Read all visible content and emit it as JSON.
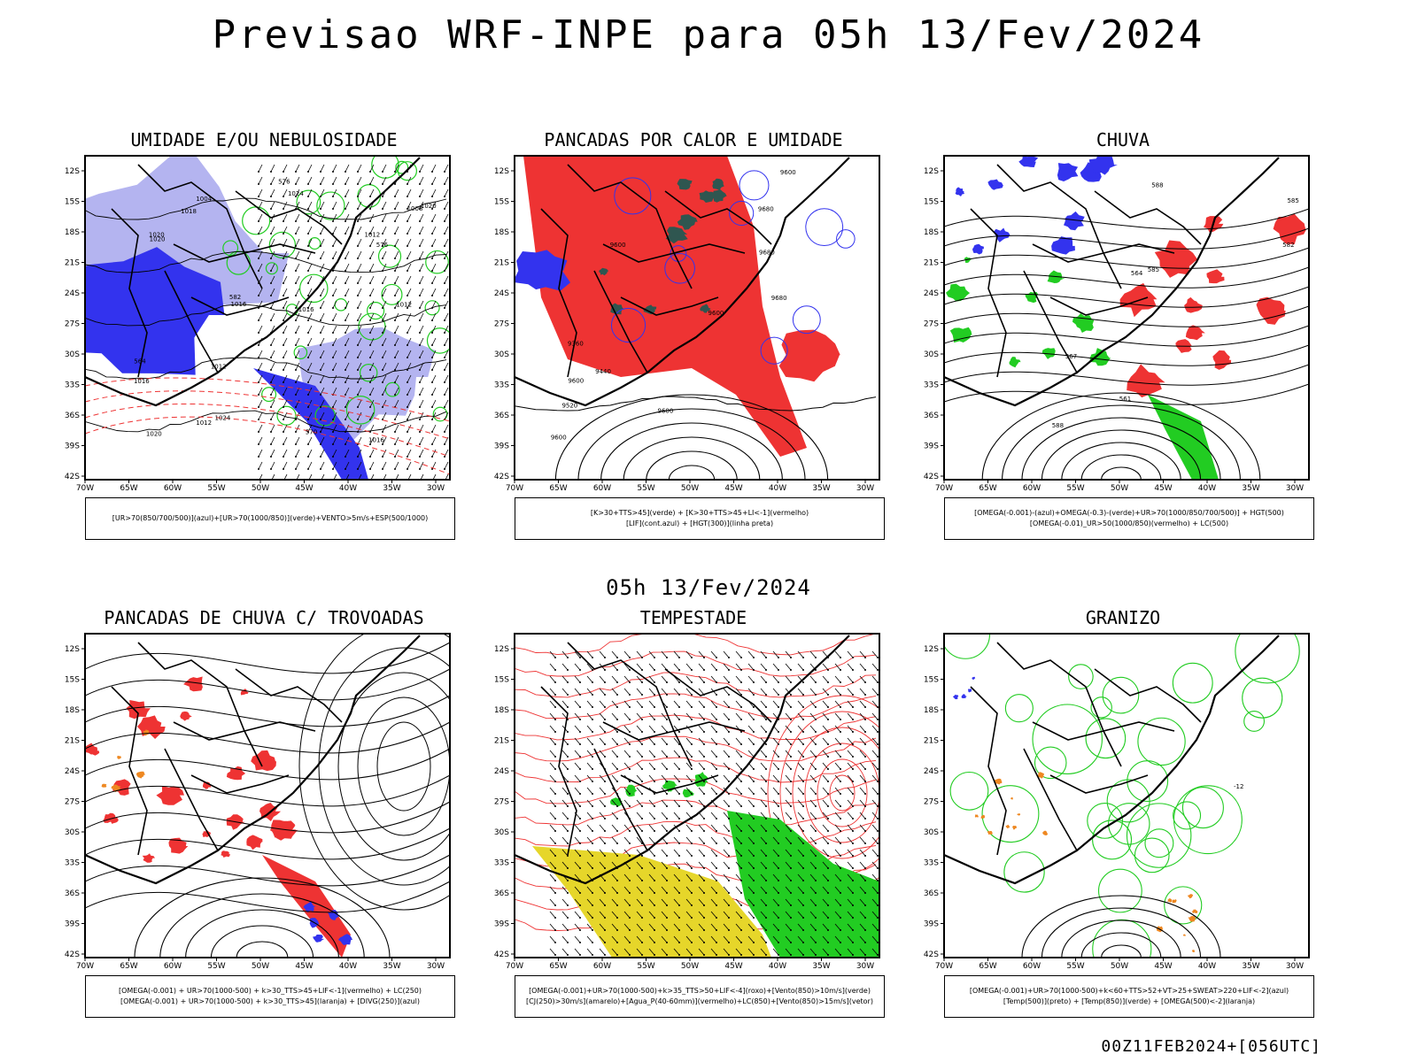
{
  "header": {
    "title": "Previsao WRF-INPE  para 05h 13/Fev/2024",
    "mid_label": "05h 13/Fev/2024",
    "footer": "00Z11FEB2024+[056UTC]"
  },
  "axes": {
    "lat_labels": [
      "12S",
      "15S",
      "18S",
      "21S",
      "24S",
      "27S",
      "30S",
      "33S",
      "36S",
      "39S",
      "42S"
    ],
    "lon_labels": [
      "70W",
      "65W",
      "60W",
      "55W",
      "50W",
      "45W",
      "40W",
      "35W",
      "30W"
    ]
  },
  "colors": {
    "blue": "#3333ee",
    "lightblue": "#b4b4f0",
    "green": "#22cc22",
    "red": "#ee3333",
    "darkteal": "#2f5650",
    "yellow": "#e6d62a",
    "orange": "#ee8822"
  },
  "chart_data": [
    {
      "type": "heatmap",
      "title": "UMIDADE E/OU NEBULOSIDADE",
      "xlim": [
        -70,
        -28
      ],
      "ylim": [
        -42,
        -10
      ],
      "legend": [
        "[UR>70(850/700/500)](azul)+[UR>70(1000/850)](verde)+VENTO>5m/s+ESP(500/1000)"
      ],
      "contour_labels": [
        "1018",
        "1012",
        "1016",
        "1016",
        "1016",
        "1020",
        "1016",
        "1012",
        "1012",
        "1008",
        "1012",
        "1004",
        "1020",
        "1020",
        "1024",
        "1024",
        "1020",
        "576",
        "576",
        "570",
        "564",
        "582"
      ]
    },
    {
      "type": "heatmap",
      "title": "PANCADAS POR CALOR E UMIDADE",
      "xlim": [
        -70,
        -28
      ],
      "ylim": [
        -42,
        -10
      ],
      "legend": [
        "[K>30+TTS>45](verde) + [K>30+TTS>45+LI<-1](vermelho)",
        "[LIF](cont.azul) + [HGT(300)](linha preta)"
      ],
      "contour_labels": [
        "9600",
        "9600",
        "9680",
        "9680",
        "9600",
        "9680",
        "9600",
        "9600",
        "9520",
        "9440",
        "9360",
        "9600"
      ]
    },
    {
      "type": "heatmap",
      "title": "CHUVA",
      "xlim": [
        -70,
        -28
      ],
      "ylim": [
        -42,
        -10
      ],
      "legend": [
        "[OMEGA(-0.001)-(azul)+OMEGA(-0.3)-(verde)+UR>70(1000/850/700/500)] + HGT(500)",
        "[OMEGA(-0.01)_UR>50(1000/850)(vermelho) + LC(500)"
      ],
      "contour_labels": [
        "588",
        "588",
        "585",
        "585",
        "582",
        "567",
        "564",
        "561"
      ]
    },
    {
      "type": "heatmap",
      "title": "PANCADAS DE CHUVA C/ TROVOADAS",
      "xlim": [
        -70,
        -28
      ],
      "ylim": [
        -42,
        -10
      ],
      "legend": [
        "[OMEGA(-0.001) + UR>70(1000-500) + k>30_TTS>45+LIF<-1](vermelho) + LC(250)",
        "[OMEGA(-0.001) + UR>70(1000-500) + k>30_TTS>45](laranja) + [DIVG(250)](azul)"
      ],
      "contour_labels": []
    },
    {
      "type": "heatmap",
      "title": "TEMPESTADE",
      "xlim": [
        -70,
        -28
      ],
      "ylim": [
        -42,
        -10
      ],
      "legend": [
        "[OMEGA(-0.001)+UR>70(1000-500)+k>35_TTS>50+LIF<-4](roxo)+[Vento(850)>10m/s](verde)",
        "[CJ(250)>30m/s](amarelo)+[Agua_P(40-60mm)](vermelho)+LC(850)+[Vento(850)>15m/s](vetor)"
      ],
      "contour_labels": []
    },
    {
      "type": "heatmap",
      "title": "GRANIZO",
      "xlim": [
        -70,
        -28
      ],
      "ylim": [
        -42,
        -10
      ],
      "legend": [
        "[OMEGA(-0.001)+UR>70(1000-500)+k<60+TTS>52+VT>25+SWEAT>220+LIF<-2](azul)",
        "[Temp(500)](preto) + [Temp(850)](verde) + [OMEGA(500)<-2](laranja)"
      ],
      "contour_labels": [
        "-12"
      ]
    }
  ]
}
